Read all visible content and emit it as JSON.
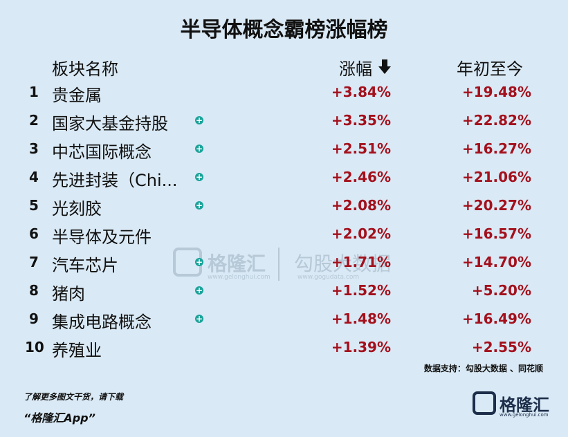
{
  "header": {
    "title": "半导体概念霸榜涨幅榜"
  },
  "table": {
    "columns": [
      "板块名称",
      "涨幅",
      "年初至今"
    ],
    "rows": [
      {
        "rank": "1",
        "name": "贵金属",
        "plus": false,
        "change": "+3.84%",
        "ytd": "+19.48%"
      },
      {
        "rank": "2",
        "name": "国家大基金持股",
        "plus": true,
        "change": "+3.35%",
        "ytd": "+22.82%"
      },
      {
        "rank": "3",
        "name": "中芯国际概念",
        "plus": true,
        "change": "+2.51%",
        "ytd": "+16.27%"
      },
      {
        "rank": "4",
        "name": "先进封装（Chi...",
        "plus": true,
        "change": "+2.46%",
        "ytd": "+21.06%"
      },
      {
        "rank": "5",
        "name": "光刻胶",
        "plus": true,
        "change": "+2.08%",
        "ytd": "+20.27%"
      },
      {
        "rank": "6",
        "name": "半导体及元件",
        "plus": false,
        "change": "+2.02%",
        "ytd": "+16.57%"
      },
      {
        "rank": "7",
        "name": "汽车芯片",
        "plus": true,
        "change": "+1.71%",
        "ytd": "+14.70%"
      },
      {
        "rank": "8",
        "name": "猪肉",
        "plus": true,
        "change": "+1.52%",
        "ytd": "+5.20%"
      },
      {
        "rank": "9",
        "name": "集成电路概念",
        "plus": true,
        "change": "+1.48%",
        "ytd": "+16.49%"
      },
      {
        "rank": "10",
        "name": "养殖业",
        "plus": false,
        "change": "+1.39%",
        "ytd": "+2.55%"
      }
    ]
  },
  "source": "数据支持：勾股大数据 、同花顺",
  "watermark": {
    "brand": "格隆汇",
    "brand_url": "www.gelonghui.com",
    "partner": "勾股大数据",
    "partner_url": "www.gogudata.com"
  },
  "footer": {
    "promo": "了解更多图文干货，请下载",
    "app": "“格隆汇App”",
    "logo": "格隆汇",
    "logo_url": "www.gelonghui.com"
  }
}
